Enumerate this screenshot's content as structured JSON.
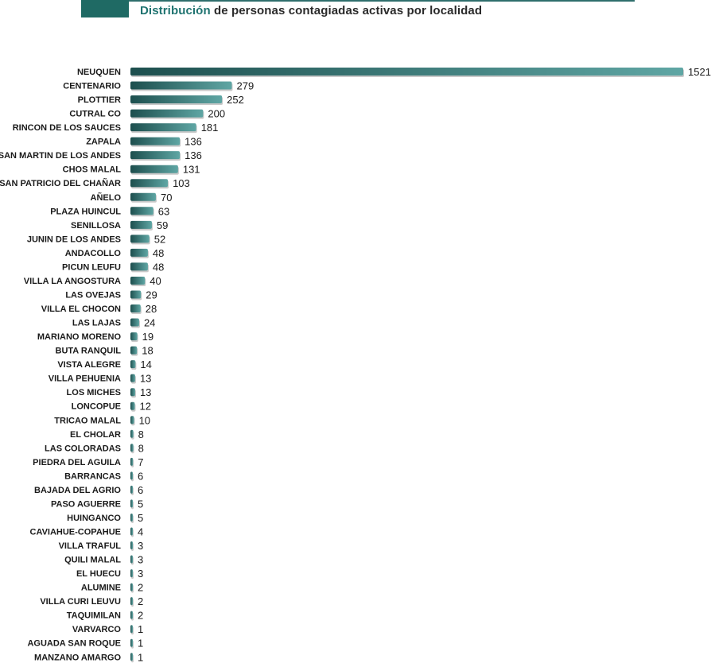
{
  "header": {
    "title_highlight": "Distribución",
    "title_rest": " de personas contagiadas activas por localidad"
  },
  "colors": {
    "bar_dark": "#1d4f4e",
    "bar_light": "#5fa6a4",
    "accent": "#1f6a64"
  },
  "chart_data": {
    "type": "bar",
    "orientation": "horizontal",
    "title": "Distribución de personas contagiadas activas por localidad",
    "categories": [
      "NEUQUEN",
      "CENTENARIO",
      "PLOTTIER",
      "CUTRAL CO",
      "RINCON DE LOS SAUCES",
      "ZAPALA",
      "SAN MARTIN DE LOS ANDES",
      "CHOS MALAL",
      "SAN PATRICIO DEL CHAÑAR",
      "AÑELO",
      "PLAZA HUINCUL",
      "SENILLOSA",
      "JUNIN DE LOS ANDES",
      "ANDACOLLO",
      "PICUN LEUFU",
      "VILLA LA ANGOSTURA",
      "LAS OVEJAS",
      "VILLA EL CHOCON",
      "LAS LAJAS",
      "MARIANO MORENO",
      "BUTA RANQUIL",
      "VISTA ALEGRE",
      "VILLA PEHUENIA",
      "LOS MICHES",
      "LONCOPUE",
      "TRICAO MALAL",
      "EL CHOLAR",
      "LAS COLORADAS",
      "PIEDRA DEL AGUILA",
      "BARRANCAS",
      "BAJADA DEL AGRIO",
      "PASO AGUERRE",
      "HUINGANCO",
      "CAVIAHUE-COPAHUE",
      "VILLA TRAFUL",
      "QUILI MALAL",
      "EL HUECU",
      "ALUMINE",
      "VILLA CURI LEUVU",
      "TAQUIMILAN",
      "VARVARCO",
      "AGUADA SAN ROQUE",
      "MANZANO AMARGO"
    ],
    "values": [
      1521,
      279,
      252,
      200,
      181,
      136,
      136,
      131,
      103,
      70,
      63,
      59,
      52,
      48,
      48,
      40,
      29,
      28,
      24,
      19,
      18,
      14,
      13,
      13,
      12,
      10,
      8,
      8,
      7,
      6,
      6,
      5,
      5,
      4,
      3,
      3,
      3,
      2,
      2,
      2,
      1,
      1,
      1
    ],
    "xlim": [
      0,
      1521
    ],
    "grid": false,
    "legend": "none"
  }
}
